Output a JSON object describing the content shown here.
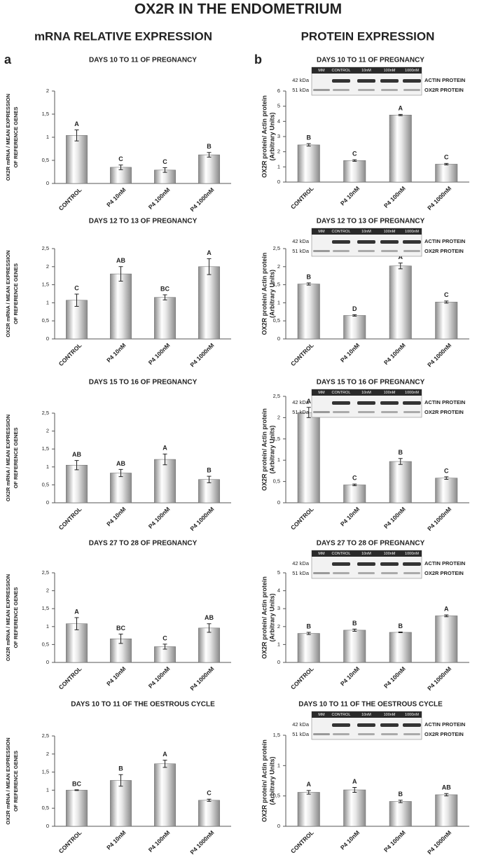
{
  "header": {
    "title": "OX2R IN THE ENDOMETRIUM",
    "left_heading": "mRNA RELATIVE EXPRESSION",
    "right_heading": "PROTEIN EXPRESSION",
    "left_panel": "a",
    "right_panel": "b"
  },
  "blot": {
    "lanes": [
      "MM",
      "CONTROL",
      "10nM",
      "100nM",
      "1000nM"
    ],
    "kda": [
      "42 kDa",
      "51 kDa"
    ],
    "proteins": [
      "ACTIN PROTEIN",
      "OX2R PROTEIN"
    ]
  },
  "bar_color": "#8a8a8a",
  "chart_data": [
    {
      "type": "bar",
      "title": "DAYS 10 TO 11 OF PREGNANCY",
      "y_label": [
        "OX2R mRNA / MEAN EXPRESSION",
        "OF REFERENCE GENES"
      ],
      "categories": [
        "CONTROL",
        "P4 10nM",
        "P4 100nM",
        "P4 1000nM"
      ],
      "values": [
        1.04,
        0.35,
        0.29,
        0.62
      ],
      "errors": [
        0.12,
        0.05,
        0.05,
        0.05
      ],
      "letters": [
        "A",
        "C",
        "C",
        "B"
      ],
      "ylim": [
        0,
        2
      ],
      "yticks": [
        0,
        {
          "value": 0.5,
          "label": "0,5"
        },
        1,
        {
          "value": 1.5,
          "label": "1,5"
        },
        2
      ]
    },
    {
      "type": "bar",
      "title": "DAYS 12 TO 13 OF PREGNANCY",
      "y_label": [
        "OX2R mRNA / MEAN EXPRESSION",
        "OF REFERENCE GENES"
      ],
      "categories": [
        "CONTROL",
        "P4 10nM",
        "P4 100nM",
        "P4 1000nM"
      ],
      "values": [
        1.07,
        1.8,
        1.15,
        2.0
      ],
      "errors": [
        0.17,
        0.2,
        0.07,
        0.22
      ],
      "letters": [
        "C",
        "AB",
        "BC",
        "A"
      ],
      "ylim": [
        0,
        2.5
      ],
      "yticks": [
        0,
        {
          "value": 0.5,
          "label": "0,5"
        },
        1,
        {
          "value": 1.5,
          "label": "1,5"
        },
        2,
        {
          "value": 2.5,
          "label": "2,5"
        }
      ]
    },
    {
      "type": "bar",
      "title": "DAYS 15 TO 16 OF PREGNANCY",
      "y_label": [
        "OX2R mRNA / MEAN EXPRESSION",
        "OF REFERENCE GENES"
      ],
      "categories": [
        "CONTROL",
        "P4 10nM",
        "P4 100nM",
        "P4 1000nM"
      ],
      "values": [
        1.05,
        0.83,
        1.21,
        0.65
      ],
      "errors": [
        0.13,
        0.1,
        0.15,
        0.09
      ],
      "letters": [
        "AB",
        "AB",
        "A",
        "B"
      ],
      "ylim": [
        0,
        2.5
      ],
      "yticks": [
        0,
        {
          "value": 0.5,
          "label": "0,5"
        },
        1,
        {
          "value": 1.5,
          "label": "1,5"
        },
        2,
        {
          "value": 2.5,
          "label": "2,5"
        }
      ]
    },
    {
      "type": "bar",
      "title": "DAYS 27 TO 28 OF PREGNANCY",
      "y_label": [
        "OX2R mRNA / MEAN EXPRESSION",
        "OF REFERENCE GENES"
      ],
      "categories": [
        "CONTROL",
        "P4 10nM",
        "P4 100nM",
        "P4 1000nM"
      ],
      "values": [
        1.08,
        0.66,
        0.44,
        0.96
      ],
      "errors": [
        0.17,
        0.13,
        0.07,
        0.12
      ],
      "letters": [
        "A",
        "BC",
        "C",
        "AB"
      ],
      "ylim": [
        0,
        2.5
      ],
      "yticks": [
        0,
        {
          "value": 0.5,
          "label": "0,5"
        },
        1,
        {
          "value": 1.5,
          "label": "1,5"
        },
        2,
        {
          "value": 2.5,
          "label": "2,5"
        }
      ]
    },
    {
      "type": "bar",
      "title": "DAYS 10 TO 11 OF THE OESTROUS CYCLE",
      "y_label": [
        "OX2R mRNA / MEAN EXPRESSION",
        "OF REFERENCE GENES"
      ],
      "categories": [
        "CONTROL",
        "P4 10nM",
        "P4 100nM",
        "P4 1000nM"
      ],
      "values": [
        1.0,
        1.27,
        1.73,
        0.72
      ],
      "errors": [
        0.01,
        0.16,
        0.1,
        0.03
      ],
      "letters": [
        "BC",
        "B",
        "A",
        "C"
      ],
      "ylim": [
        0,
        2.5
      ],
      "yticks": [
        0,
        {
          "value": 0.5,
          "label": "0,5"
        },
        1,
        {
          "value": 1.5,
          "label": "1,5"
        },
        2,
        {
          "value": 2.5,
          "label": "2,5"
        }
      ]
    },
    {
      "type": "bar",
      "title": "DAYS 10 TO 11 OF PREGNANCY",
      "y_label": [
        "OX2R protein/ Actin protein",
        "(Arbitrary Units)"
      ],
      "categories": [
        "CONTROL",
        "P4 10nM",
        "P4 100nM",
        "P4 1000nM"
      ],
      "values": [
        2.45,
        1.42,
        4.42,
        1.18
      ],
      "errors": [
        0.08,
        0.05,
        0.04,
        0.05
      ],
      "letters": [
        "B",
        "C",
        "A",
        "C"
      ],
      "ylim": [
        0,
        6
      ],
      "yticks": [
        0,
        1,
        2,
        3,
        4,
        5,
        6
      ]
    },
    {
      "type": "bar",
      "title": "DAYS 12 TO 13 OF PREGNANCY",
      "y_label": [
        "OX2R protein/ Actin protein",
        "(Arbitrary Units)"
      ],
      "categories": [
        "CONTROL",
        "P4 10nM",
        "P4 100nM",
        "P4 1000nM"
      ],
      "values": [
        1.52,
        0.65,
        2.02,
        1.02
      ],
      "errors": [
        0.03,
        0.02,
        0.08,
        0.03
      ],
      "letters": [
        "B",
        "D",
        "A",
        "C"
      ],
      "ylim": [
        0,
        2.5
      ],
      "yticks": [
        0,
        {
          "value": 0.5,
          "label": "0,5"
        },
        1,
        {
          "value": 1.5,
          "label": "1,5"
        },
        2,
        {
          "value": 2.5,
          "label": "2,5"
        }
      ]
    },
    {
      "type": "bar",
      "title": "DAYS 15 TO 16 OF PREGNANCY",
      "y_label": [
        "OX2R protein/ Actin protein",
        "(Arbitrary Units)"
      ],
      "categories": [
        "CONTROL",
        "P4 10nM",
        "P4 100nM",
        "P4 1000nM"
      ],
      "values": [
        2.12,
        0.42,
        0.97,
        0.58
      ],
      "errors": [
        0.12,
        0.02,
        0.07,
        0.03
      ],
      "letters": [
        "A",
        "C",
        "B",
        "C"
      ],
      "ylim": [
        0,
        2.5
      ],
      "yticks": [
        0,
        {
          "value": 0.5,
          "label": "0,5"
        },
        1,
        {
          "value": 1.5,
          "label": "1,5"
        },
        2,
        {
          "value": 2.5,
          "label": "2,5"
        }
      ]
    },
    {
      "type": "bar",
      "title": "DAYS 27 TO 28 OF PREGNANCY",
      "y_label": [
        "OX2R protein/ Actin protein",
        "(Arbitrary Units)"
      ],
      "categories": [
        "CONTROL",
        "P4 10nM",
        "P4 100nM",
        "P4 1000nM"
      ],
      "values": [
        1.62,
        1.8,
        1.68,
        2.6
      ],
      "errors": [
        0.06,
        0.06,
        0.02,
        0.05
      ],
      "letters": [
        "B",
        "B",
        "B",
        "A"
      ],
      "ylim": [
        0,
        5
      ],
      "yticks": [
        0,
        1,
        2,
        3,
        4,
        5
      ]
    },
    {
      "type": "bar",
      "title": "DAYS 10 TO 11 OF THE OESTROUS CYCLE",
      "y_label": [
        "OX2R protein/ Actin protein",
        "(Arbitrary Units)"
      ],
      "categories": [
        "CONTROL",
        "P4 10nM",
        "P4 100nM",
        "P4 1000nM"
      ],
      "values": [
        0.56,
        0.6,
        0.41,
        0.52
      ],
      "errors": [
        0.03,
        0.04,
        0.02,
        0.02
      ],
      "letters": [
        "A",
        "A",
        "B",
        "AB"
      ],
      "ylim": [
        0,
        1.5
      ],
      "yticks": [
        0,
        {
          "value": 0.5,
          "label": "0,5"
        },
        1,
        {
          "value": 1.5,
          "label": "1,5"
        }
      ]
    }
  ]
}
